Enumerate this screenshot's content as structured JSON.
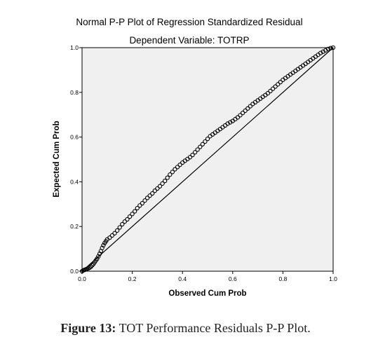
{
  "chart_data": {
    "type": "scatter",
    "title": "Normal P-P Plot of Regression Standardized Residual",
    "subtitle": "Dependent Variable: TOTRP",
    "xlabel": "Observed Cum Prob",
    "ylabel": "Expected Cum Prob",
    "xlim": [
      0,
      1
    ],
    "ylim": [
      0,
      1
    ],
    "x_ticks": [
      "0.0",
      "0.2",
      "0.4",
      "0.6",
      "0.8",
      "1.0"
    ],
    "y_ticks": [
      "0.0",
      "0.2",
      "0.4",
      "0.6",
      "0.8",
      "1.0"
    ],
    "grid": false,
    "reference_line": [
      [
        0,
        0
      ],
      [
        1,
        1
      ]
    ],
    "colors": {
      "plot_background": "#f0f0f0",
      "points": "#000000",
      "reference_line": "#000000"
    },
    "series": [
      {
        "x": [
          0.0,
          0.005,
          0.01,
          0.015,
          0.02,
          0.025,
          0.03,
          0.035,
          0.04,
          0.045,
          0.05,
          0.055,
          0.06,
          0.065,
          0.07,
          0.075,
          0.08,
          0.085,
          0.09,
          0.095,
          0.1,
          0.11,
          0.12,
          0.13,
          0.14,
          0.15,
          0.16,
          0.17,
          0.18,
          0.19,
          0.2,
          0.21,
          0.22,
          0.23,
          0.24,
          0.25,
          0.26,
          0.27,
          0.28,
          0.29,
          0.3,
          0.31,
          0.32,
          0.33,
          0.34,
          0.35,
          0.36,
          0.37,
          0.38,
          0.39,
          0.4,
          0.41,
          0.42,
          0.43,
          0.44,
          0.45,
          0.46,
          0.47,
          0.48,
          0.49,
          0.5,
          0.51,
          0.52,
          0.53,
          0.54,
          0.55,
          0.56,
          0.57,
          0.58,
          0.59,
          0.6,
          0.61,
          0.62,
          0.63,
          0.64,
          0.65,
          0.66,
          0.67,
          0.68,
          0.69,
          0.7,
          0.71,
          0.72,
          0.73,
          0.74,
          0.75,
          0.76,
          0.77,
          0.78,
          0.79,
          0.8,
          0.81,
          0.82,
          0.83,
          0.84,
          0.85,
          0.86,
          0.87,
          0.88,
          0.89,
          0.9,
          0.91,
          0.92,
          0.93,
          0.94,
          0.95,
          0.96,
          0.97,
          0.98,
          0.99,
          1.0
        ],
        "y": [
          0.0,
          0.004,
          0.006,
          0.008,
          0.01,
          0.013,
          0.016,
          0.02,
          0.026,
          0.032,
          0.04,
          0.048,
          0.056,
          0.066,
          0.078,
          0.09,
          0.104,
          0.116,
          0.126,
          0.134,
          0.142,
          0.15,
          0.16,
          0.17,
          0.182,
          0.196,
          0.21,
          0.222,
          0.232,
          0.244,
          0.256,
          0.268,
          0.282,
          0.294,
          0.304,
          0.316,
          0.328,
          0.338,
          0.348,
          0.36,
          0.37,
          0.38,
          0.392,
          0.404,
          0.418,
          0.432,
          0.444,
          0.456,
          0.466,
          0.476,
          0.486,
          0.494,
          0.502,
          0.51,
          0.52,
          0.532,
          0.544,
          0.556,
          0.568,
          0.58,
          0.592,
          0.604,
          0.612,
          0.62,
          0.628,
          0.636,
          0.644,
          0.652,
          0.66,
          0.666,
          0.672,
          0.68,
          0.688,
          0.698,
          0.708,
          0.718,
          0.728,
          0.738,
          0.748,
          0.756,
          0.764,
          0.772,
          0.78,
          0.788,
          0.796,
          0.806,
          0.816,
          0.826,
          0.836,
          0.846,
          0.856,
          0.864,
          0.872,
          0.88,
          0.888,
          0.896,
          0.904,
          0.912,
          0.92,
          0.928,
          0.936,
          0.944,
          0.952,
          0.96,
          0.968,
          0.976,
          0.982,
          0.988,
          0.994,
          0.998,
          1.0
        ]
      }
    ]
  },
  "caption": {
    "label": "Figure 13:",
    "text": " TOT Performance Residuals P-P Plot."
  }
}
